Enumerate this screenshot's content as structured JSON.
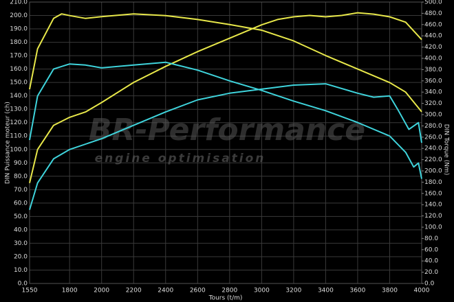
{
  "chart_data": {
    "type": "line",
    "xlabel": "Tours (t/m)",
    "ylabel": "DIN Puissance moteur (ch)",
    "y2label": "DIN Torque (Nm)",
    "annotations": [
      "BR-Performance",
      "engine optimisation"
    ],
    "grid": true,
    "background": "#000000",
    "xlim": [
      1550,
      4000
    ],
    "xticks": [
      1550,
      1800,
      2000,
      2200,
      2400,
      2600,
      2800,
      3000,
      3200,
      3400,
      3600,
      3800,
      4000
    ],
    "ylim": [
      0,
      210
    ],
    "yticks": [
      {
        "value": 0,
        "label": "0.0"
      },
      {
        "value": 10,
        "label": "10.0"
      },
      {
        "value": 20,
        "label": "20.0"
      },
      {
        "value": 30,
        "label": "30.0"
      },
      {
        "value": 40,
        "label": "40.0"
      },
      {
        "value": 50,
        "label": "50.0"
      },
      {
        "value": 60,
        "label": "60.0"
      },
      {
        "value": 70,
        "label": "70.0"
      },
      {
        "value": 80,
        "label": "80.0"
      },
      {
        "value": 90,
        "label": "90.0"
      },
      {
        "value": 100,
        "label": "100.0"
      },
      {
        "value": 110,
        "label": "110.0"
      },
      {
        "value": 120,
        "label": "120.0"
      },
      {
        "value": 130,
        "label": "130.0"
      },
      {
        "value": 140,
        "label": "140.0"
      },
      {
        "value": 150,
        "label": "150.0"
      },
      {
        "value": 160,
        "label": "160.0"
      },
      {
        "value": 170,
        "label": "170.0"
      },
      {
        "value": 180,
        "label": "180.0"
      },
      {
        "value": 190,
        "label": "190.0"
      },
      {
        "value": 200,
        "label": "200.0"
      },
      {
        "value": 210,
        "label": "210.0"
      }
    ],
    "y2lim": [
      0,
      500
    ],
    "y2ticks": [
      {
        "value": 0,
        "label": "0.0"
      },
      {
        "value": 20,
        "label": "20.0"
      },
      {
        "value": 40,
        "label": "40.0"
      },
      {
        "value": 60,
        "label": "60.0"
      },
      {
        "value": 80,
        "label": "80.0"
      },
      {
        "value": 100,
        "label": "100.0"
      },
      {
        "value": 120,
        "label": "120.0"
      },
      {
        "value": 140,
        "label": "140.0"
      },
      {
        "value": 160,
        "label": "160.0"
      },
      {
        "value": 180,
        "label": "180.0"
      },
      {
        "value": 200,
        "label": "200.0"
      },
      {
        "value": 220,
        "label": "220.0"
      },
      {
        "value": 240,
        "label": "240.0"
      },
      {
        "value": 260,
        "label": "260.0"
      },
      {
        "value": 280,
        "label": "280.0"
      },
      {
        "value": 300,
        "label": "300.0"
      },
      {
        "value": 320,
        "label": "320.0"
      },
      {
        "value": 340,
        "label": "340.0"
      },
      {
        "value": 360,
        "label": "360.0"
      },
      {
        "value": 380,
        "label": "380.0"
      },
      {
        "value": 400,
        "label": "400.0"
      },
      {
        "value": 420,
        "label": "420.0"
      },
      {
        "value": 440,
        "label": "440.0"
      },
      {
        "value": 460,
        "label": "460.0"
      },
      {
        "value": 480,
        "label": "480.0"
      },
      {
        "value": 500,
        "label": "500.0"
      }
    ],
    "series": [
      {
        "color": "#e8e84a",
        "axis": "y",
        "x": [
          1550,
          1600,
          1700,
          1800,
          1900,
          2000,
          2200,
          2400,
          2600,
          2800,
          3000,
          3100,
          3200,
          3300,
          3400,
          3500,
          3600,
          3700,
          3800,
          3900,
          4000
        ],
        "values": [
          75,
          100,
          118,
          124,
          128,
          135,
          150,
          162,
          173,
          183,
          193,
          197,
          199,
          200,
          199,
          200,
          202,
          201,
          199,
          195,
          182
        ]
      },
      {
        "color": "#e8e84a",
        "axis": "y2",
        "x": [
          1550,
          1600,
          1700,
          1750,
          1800,
          1900,
          2000,
          2200,
          2400,
          2600,
          2800,
          3000,
          3200,
          3400,
          3600,
          3800,
          3900,
          4000
        ],
        "values": [
          345,
          417,
          471,
          479,
          476,
          471,
          474,
          479,
          476,
          469,
          460,
          450,
          431,
          405,
          381,
          357,
          340,
          305
        ]
      },
      {
        "color": "#3fd4dc",
        "axis": "y",
        "x": [
          1550,
          1600,
          1700,
          1800,
          2000,
          2200,
          2400,
          2600,
          2800,
          3000,
          3200,
          3400,
          3600,
          3700,
          3800,
          3850,
          3920,
          3980,
          4000
        ],
        "values": [
          55,
          75,
          93,
          100,
          108,
          118,
          128,
          137,
          142,
          145,
          148,
          149,
          142,
          139,
          140,
          130,
          115,
          120,
          105
        ]
      },
      {
        "color": "#3fd4dc",
        "axis": "y2",
        "x": [
          1550,
          1600,
          1700,
          1800,
          1900,
          2000,
          2200,
          2400,
          2600,
          2800,
          3000,
          3200,
          3400,
          3600,
          3800,
          3900,
          3950,
          3980,
          4000
        ],
        "values": [
          255,
          333,
          381,
          390,
          388,
          383,
          388,
          393,
          379,
          360,
          343,
          324,
          307,
          286,
          262,
          233,
          207,
          214,
          186
        ]
      }
    ]
  }
}
